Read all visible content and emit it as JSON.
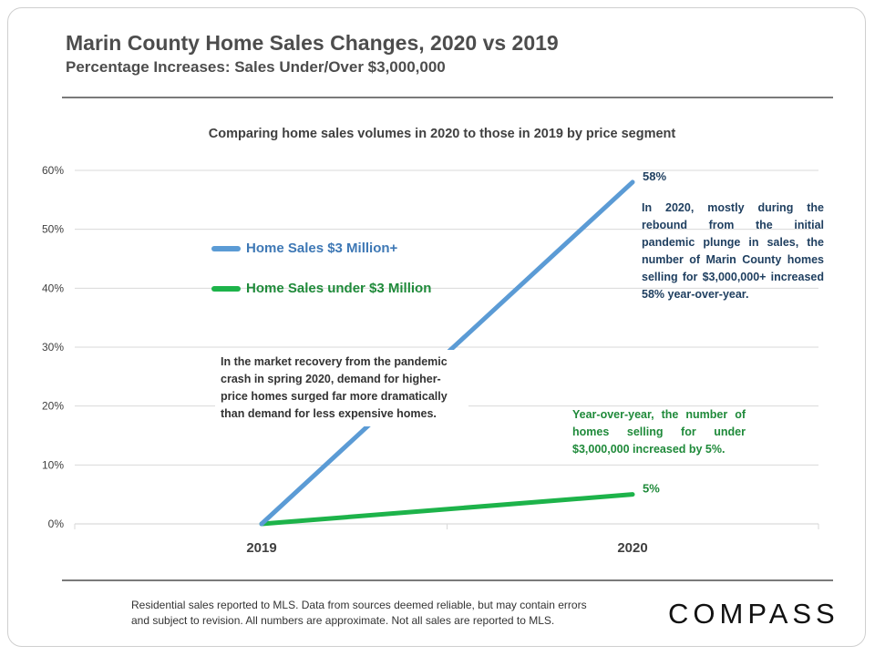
{
  "header": {
    "title": "Marin County Home Sales Changes, 2020 vs 2019",
    "subtitle": "Percentage Increases: Sales Under/Over $3,000,000"
  },
  "chart_data": {
    "type": "line",
    "title": "Comparing home sales volumes in 2020 to those in 2019 by price segment",
    "xlabel": "",
    "ylabel": "",
    "categories": [
      "2019",
      "2020"
    ],
    "ylim": [
      0,
      60
    ],
    "yticks": [
      0,
      10,
      20,
      30,
      40,
      50,
      60
    ],
    "ytick_labels": [
      "0%",
      "10%",
      "20%",
      "30%",
      "40%",
      "50%",
      "60%"
    ],
    "grid": true,
    "legend_position": "left",
    "series": [
      {
        "name": "Home Sales $3 Million+",
        "values": [
          0,
          58
        ],
        "color": "#5b9bd5",
        "end_label": "58%"
      },
      {
        "name": "Home Sales under $3 Million",
        "values": [
          0,
          5
        ],
        "color": "#1db34a",
        "end_label": "5%"
      }
    ],
    "annotations": {
      "market_recovery": "In the market recovery from the pandemic crash in spring 2020, demand for higher-price homes surged far more dramatically than demand for less expensive homes.",
      "high_end": "In 2020, mostly during the rebound from the initial pandemic plunge in sales, the number of Marin County homes selling for $3,000,000+ increased 58% year-over-year.",
      "under_3m": "Year-over-year, the number of homes selling for under $3,000,000 increased by 5%."
    }
  },
  "footer": {
    "note_line1": "Residential sales reported to MLS. Data from sources deemed reliable, but may contain errors",
    "note_line2": "and subject to revision. All numbers are approximate. Not all sales are reported to MLS.",
    "logo": "COMPASS"
  }
}
